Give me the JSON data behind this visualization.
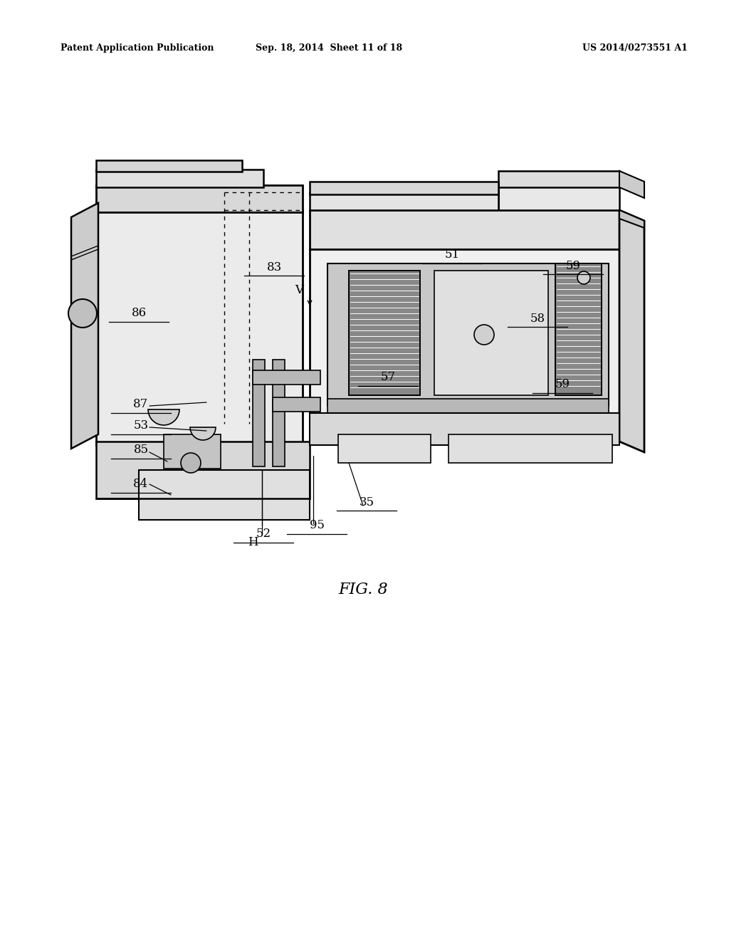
{
  "title_left": "Patent Application Publication",
  "title_center": "Sep. 18, 2014  Sheet 11 of 18",
  "title_right": "US 2014/0273551 A1",
  "fig_label": "FIG. 8",
  "background_color": "#ffffff",
  "line_color": "#000000",
  "header_fontsize": 9,
  "label_fontsize": 12,
  "fig_label_fontsize": 16
}
